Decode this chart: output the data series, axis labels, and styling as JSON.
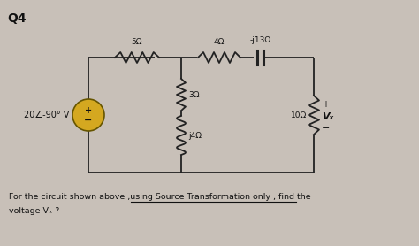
{
  "title": "Q4",
  "background_color": "#c8c0b8",
  "circuit_bg": "#e8e4dc",
  "source_label": "20∠-90° V",
  "r1_label": "5Ω",
  "r2_label": "4Ω",
  "r3_label": "3Ω",
  "r4_label": "j4Ω",
  "r5_label": "-j13Ω",
  "r6_label": "10Ω",
  "vx_label": "Vₓ",
  "footer_line1": "For the circuit shown above ,using Source Transformation only , find the",
  "footer_line2": "voltage Vₓ ?",
  "source_color": "#d4a820",
  "wire_color": "#222222",
  "text_color": "#111111"
}
